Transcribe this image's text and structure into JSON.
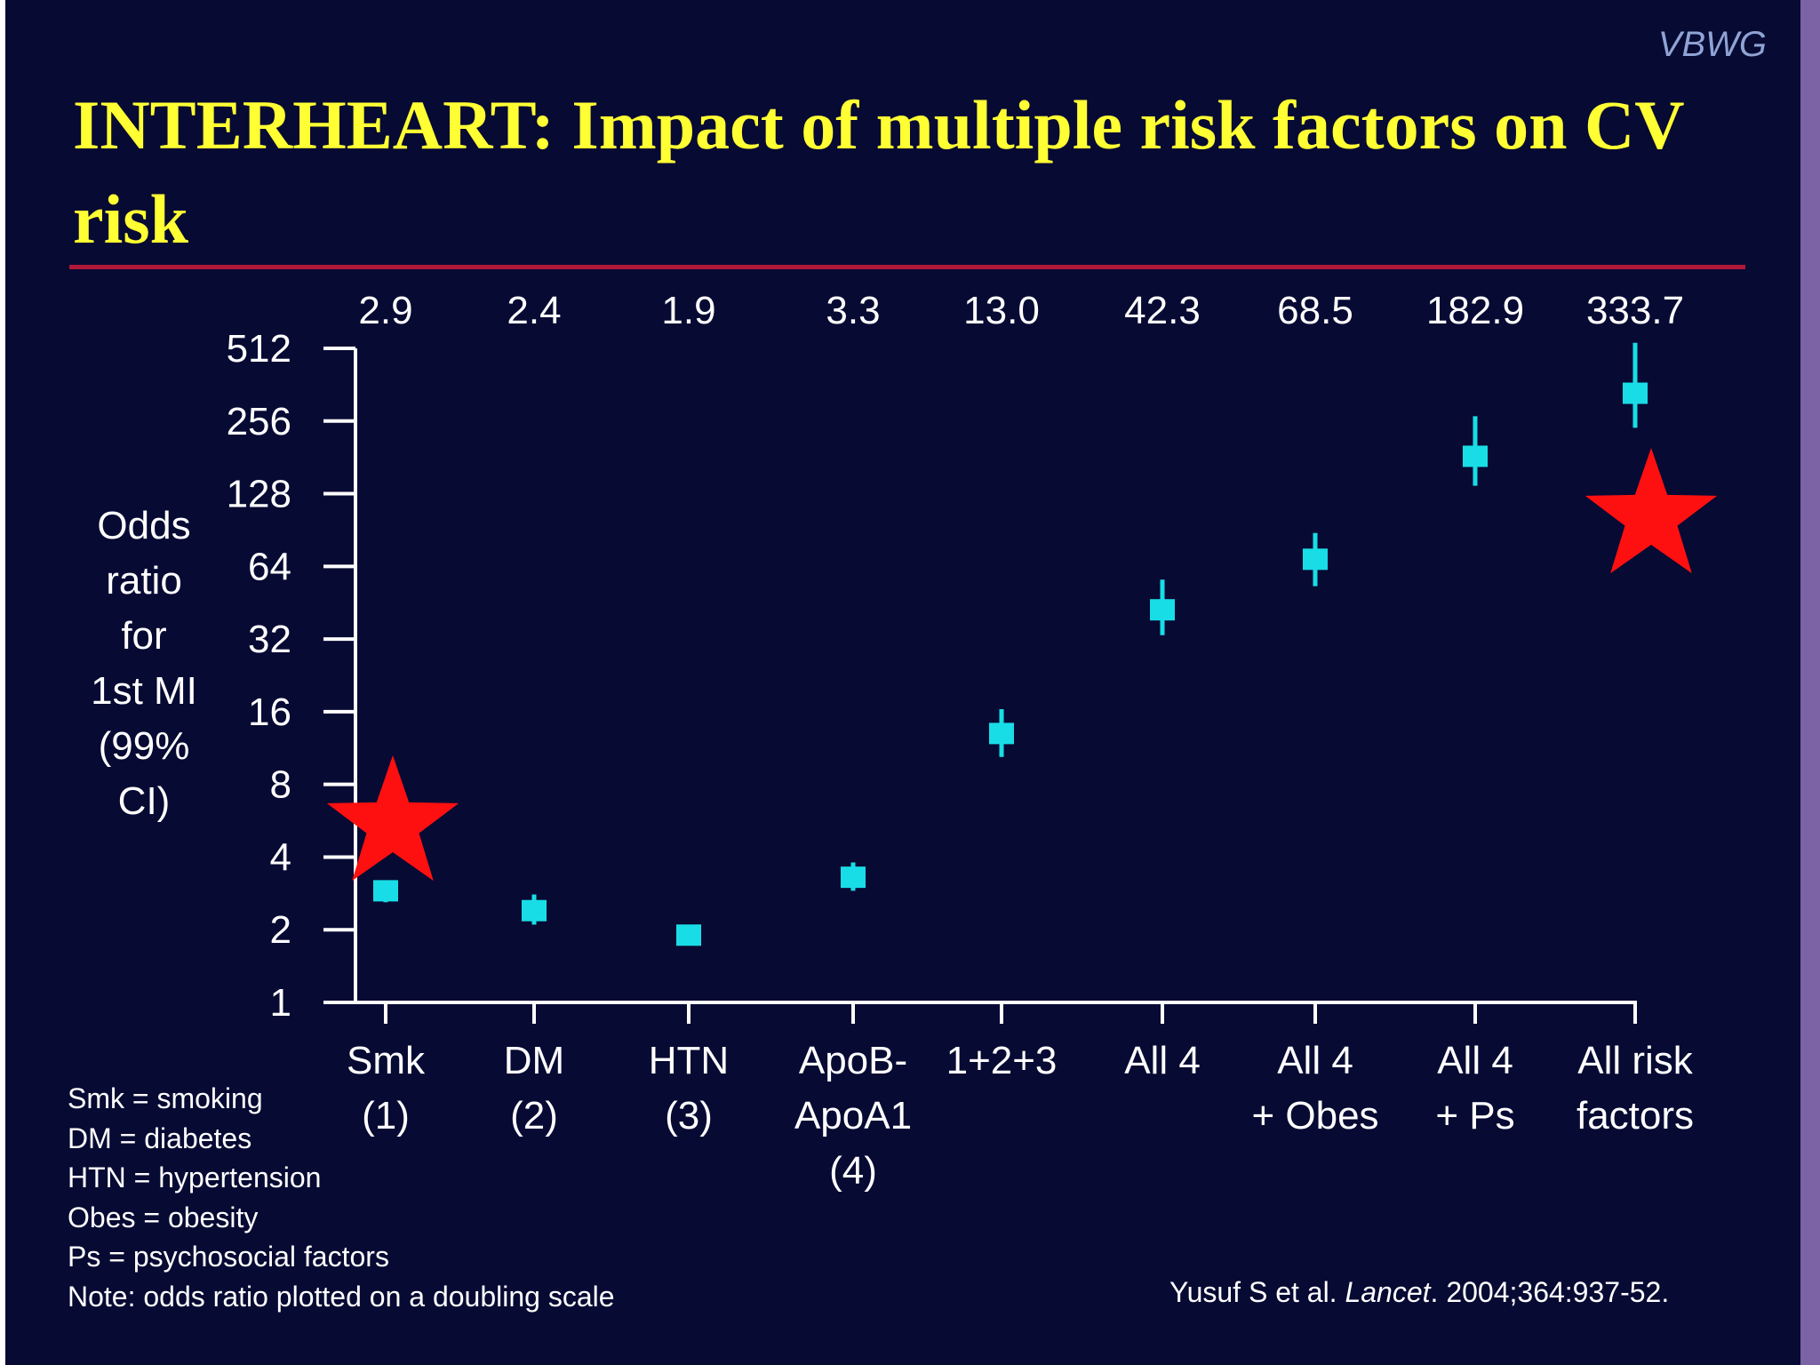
{
  "brand": "VBWG",
  "title": "INTERHEART: Impact of multiple risk factors on CV risk",
  "chart_data": {
    "type": "scatter",
    "title": "INTERHEART: Impact of multiple risk factors on CV risk",
    "ylabel_lines": [
      "Odds",
      "ratio",
      "for",
      "1st MI",
      "(99%",
      "CI)"
    ],
    "yscale": "log2",
    "ylim": [
      1,
      512
    ],
    "yticks": [
      1,
      2,
      4,
      8,
      16,
      32,
      64,
      128,
      256,
      512
    ],
    "categories": [
      [
        "Smk",
        "(1)"
      ],
      [
        "DM",
        "(2)"
      ],
      [
        "HTN",
        "(3)"
      ],
      [
        "ApoB-",
        "ApoA1",
        "(4)"
      ],
      [
        "1+2+3"
      ],
      [
        "All 4"
      ],
      [
        "All 4",
        "+ Obes"
      ],
      [
        "All 4",
        "+ Ps"
      ],
      [
        "All risk",
        "factors"
      ]
    ],
    "value_labels": [
      "2.9",
      "2.4",
      "1.9",
      "3.3",
      "13.0",
      "42.3",
      "68.5",
      "182.9",
      "333.7"
    ],
    "values": [
      2.9,
      2.4,
      1.9,
      3.3,
      13.0,
      42.3,
      68.5,
      182.9,
      333.7
    ],
    "ci_low": [
      2.6,
      2.1,
      1.75,
      2.9,
      10.4,
      33.2,
      53.0,
      138.0,
      240.0
    ],
    "ci_high": [
      3.2,
      2.8,
      2.05,
      3.8,
      16.4,
      56.4,
      88.0,
      268.0,
      540.0
    ],
    "marker_color": "#19dde6",
    "axis_color": "#ffffff",
    "highlight_stars": [
      0,
      8
    ],
    "star_color": "#ff1010",
    "grid": false
  },
  "legend": {
    "items": [
      "Smk = smoking",
      "DM = diabetes",
      "HTN = hypertension",
      "Obes = obesity",
      "Ps = psychosocial factors",
      "Note: odds ratio plotted on a doubling scale"
    ]
  },
  "citation": {
    "before": "Yusuf S et al. ",
    "journal": "Lancet",
    "after": ". 2004;364:937-52."
  },
  "colors": {
    "background": "#070a33",
    "title": "#ffff33",
    "rule": "#b0183a",
    "side_bar": "#7b63a6"
  }
}
